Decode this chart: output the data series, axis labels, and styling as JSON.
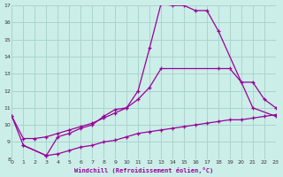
{
  "xlabel": "Windchill (Refroidissement éolien,°C)",
  "bg_color": "#cceee8",
  "grid_color": "#aad4ce",
  "line_color": "#990099",
  "xlim": [
    0,
    23
  ],
  "ylim": [
    8,
    17
  ],
  "xticks": [
    0,
    1,
    2,
    3,
    4,
    5,
    6,
    7,
    8,
    9,
    10,
    11,
    12,
    13,
    14,
    15,
    16,
    17,
    18,
    19,
    20,
    21,
    22,
    23
  ],
  "yticks": [
    8,
    9,
    10,
    11,
    12,
    13,
    14,
    15,
    16,
    17
  ],
  "curve1_x": [
    0,
    1,
    3,
    4,
    5,
    6,
    7,
    8,
    9,
    10,
    11,
    12,
    13,
    14,
    15,
    16,
    17,
    18,
    21,
    23
  ],
  "curve1_y": [
    10.5,
    8.8,
    8.2,
    9.3,
    9.5,
    9.8,
    10.0,
    10.5,
    10.9,
    11.0,
    12.0,
    14.5,
    17.1,
    17.0,
    17.0,
    16.7,
    16.7,
    15.5,
    11.0,
    10.5
  ],
  "curve2_x": [
    0,
    1,
    2,
    3,
    4,
    5,
    6,
    7,
    8,
    9,
    10,
    11,
    12,
    13,
    18,
    19,
    20,
    21,
    22,
    23
  ],
  "curve2_y": [
    10.5,
    9.2,
    9.2,
    9.3,
    9.5,
    9.7,
    9.9,
    10.1,
    10.4,
    10.7,
    11.0,
    11.5,
    12.2,
    13.3,
    13.3,
    13.3,
    12.5,
    12.5,
    11.5,
    11.0
  ],
  "curve3_x": [
    1,
    3,
    4,
    5,
    6,
    7,
    8,
    9,
    10,
    11,
    12,
    13,
    14,
    15,
    16,
    17,
    18,
    19,
    20,
    21,
    22,
    23
  ],
  "curve3_y": [
    8.8,
    8.2,
    8.3,
    8.5,
    8.7,
    8.8,
    9.0,
    9.1,
    9.3,
    9.5,
    9.6,
    9.7,
    9.8,
    9.9,
    10.0,
    10.1,
    10.2,
    10.3,
    10.3,
    10.4,
    10.5,
    10.6
  ]
}
